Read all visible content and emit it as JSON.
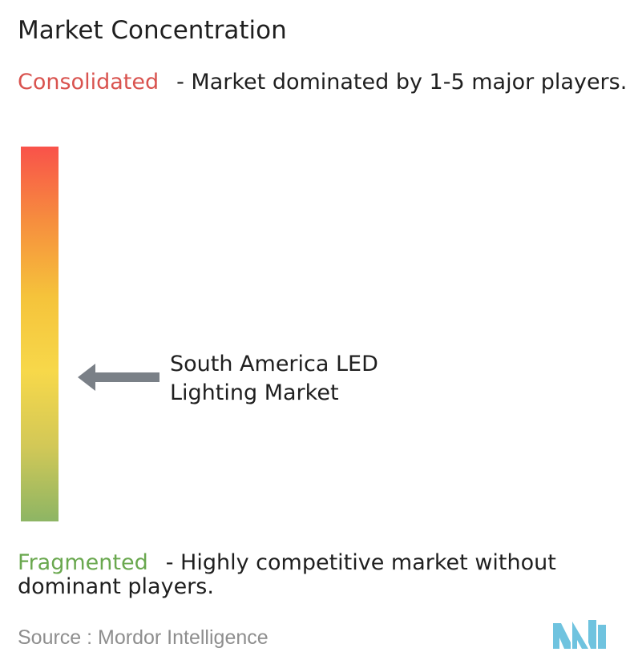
{
  "title": "Market Concentration",
  "consolidated": {
    "label": "Consolidated",
    "description": "- Market dominated by 1-5 major players.",
    "color": "#d9534f"
  },
  "fragmented": {
    "label": "Fragmented",
    "description": "- Highly competitive market without dominant players.",
    "color": "#6aa84f"
  },
  "gradient_colors": [
    "#f9524a",
    "#f68e3e",
    "#f5c33b",
    "#f7d84a",
    "#d2c857",
    "#8db564"
  ],
  "arrow_color": "#7a8087",
  "market": {
    "line1": "South America LED",
    "line2": "Lighting Market"
  },
  "source": "Source :  Mordor Intelligence",
  "logo": {
    "icon": "mordor-intelligence-logo-icon",
    "color": "#6fc3df"
  },
  "chart_data": {
    "type": "scale",
    "title": "Market Concentration",
    "scale_top": "Consolidated",
    "scale_bottom": "Fragmented",
    "marker_label": "South America LED Lighting Market",
    "marker_position": 0.38
  }
}
